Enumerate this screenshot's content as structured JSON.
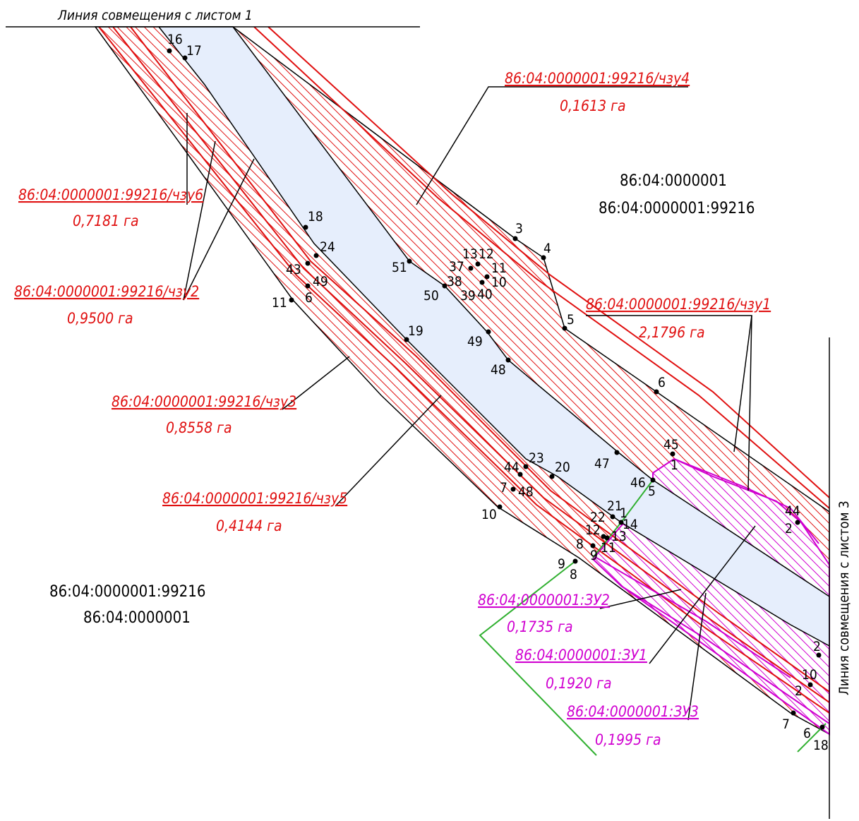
{
  "sheet_labels": {
    "top": "Линия совмещения с листом 1",
    "right": "Линия совмещения с листом 3"
  },
  "quarter_labels": {
    "ne_quarter": "86:04:0000001",
    "ne_parcel": "86:04:0000001:99216",
    "sw_parcel": "86:04:0000001:99216",
    "sw_quarter": "86:04:0000001"
  },
  "zones": {
    "chzu4": {
      "number": "86:04:0000001:99216/чзу4",
      "area": "0,1613 га"
    },
    "chzu6": {
      "number": "86:04:0000001:99216/чзу6",
      "area": "0,7181 га"
    },
    "chzu2": {
      "number": "86:04:0000001:99216/чзу2",
      "area": "0,9500 га"
    },
    "chzu1": {
      "number": "86:04:0000001:99216/чзу1",
      "area": "2,1796 га"
    },
    "chzu3": {
      "number": "86:04:0000001:99216/чзу3",
      "area": "0,8558 га"
    },
    "chzu5": {
      "number": "86:04:0000001:99216/чзу5",
      "area": "0,4144 га"
    },
    "zu2": {
      "number": "86:04:0000001:ЗУ2",
      "area": "0,1735 га"
    },
    "zu1": {
      "number": "86:04:0000001:ЗУ1",
      "area": "0,1920 га"
    },
    "zu3": {
      "number": "86:04:0000001:ЗУ3",
      "area": "0,1995 га"
    }
  },
  "points": [
    "16",
    "17",
    "18",
    "24",
    "43",
    "49",
    "6",
    "11",
    "19",
    "51",
    "50",
    "38",
    "39",
    "40",
    "37",
    "13",
    "12",
    "11",
    "10",
    "3",
    "4",
    "5",
    "49",
    "48",
    "6",
    "47",
    "45",
    "1",
    "46",
    "5",
    "44",
    "2",
    "23",
    "44",
    "7",
    "48",
    "20",
    "10",
    "21",
    "1",
    "22",
    "14",
    "12",
    "13",
    "8",
    "11",
    "9",
    "9",
    "8",
    "2",
    "10",
    "2",
    "7",
    "6",
    "18"
  ],
  "colors": {
    "road_fill": "#e6eefc",
    "red_zone": "#e01010",
    "magenta_zone": "#d000d0",
    "green_line": "#30b030"
  }
}
